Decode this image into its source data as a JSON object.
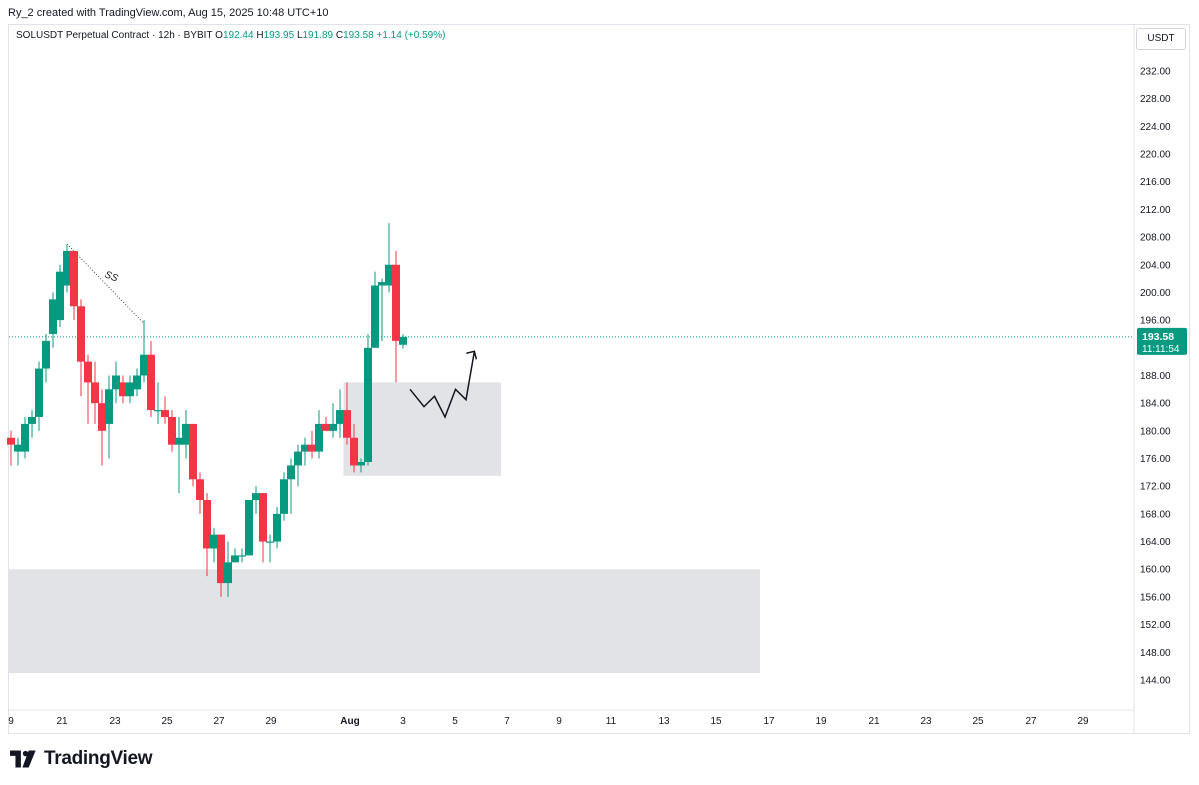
{
  "header": {
    "credit": "Ry_2 created with TradingView.com, Aug 15, 2025 10:48 UTC+10"
  },
  "legend": {
    "symbol": "SOLUSDT Perpetual Contract · 12h · BYBIT",
    "o_label": "O",
    "o_value": "192.44",
    "h_label": "H",
    "h_value": "193.95",
    "l_label": "L",
    "l_value": "191.89",
    "c_label": "C",
    "c_value": "193.58",
    "change": "+1.14 (+0.59%)"
  },
  "price_axis": {
    "currency": "USDT",
    "ticks": [
      "232.00",
      "228.00",
      "224.00",
      "220.00",
      "216.00",
      "212.00",
      "208.00",
      "204.00",
      "200.00",
      "196.00",
      "188.00",
      "184.00",
      "180.00",
      "176.00",
      "172.00",
      "168.00",
      "164.00",
      "160.00",
      "156.00",
      "152.00",
      "148.00",
      "144.00"
    ],
    "current_price": "193.58",
    "countdown": "11:11:54"
  },
  "time_axis": {
    "ticks": [
      "9",
      "21",
      "23",
      "25",
      "27",
      "29",
      "Aug",
      "3",
      "5",
      "7",
      "9",
      "11",
      "13",
      "15",
      "17",
      "19",
      "21",
      "23",
      "25",
      "27",
      "29"
    ]
  },
  "annotations": {
    "trendline_label": "SS"
  },
  "brand": {
    "name": "TradingView"
  },
  "colors": {
    "up": "#089981",
    "down": "#f23645",
    "zone": "#e1e3e6",
    "price_line": "#089981"
  },
  "chart_data": {
    "type": "candlestick",
    "interval": "12h",
    "ylim": [
      143,
      234
    ],
    "x_range": [
      0,
      107
    ],
    "candles": [
      {
        "t": 0,
        "o": 179,
        "h": 180,
        "l": 175,
        "c": 178
      },
      {
        "t": 1,
        "o": 177,
        "h": 179,
        "l": 175,
        "c": 178
      },
      {
        "t": 2,
        "o": 177,
        "h": 182,
        "l": 176,
        "c": 181
      },
      {
        "t": 3,
        "o": 181,
        "h": 183,
        "l": 179,
        "c": 182
      },
      {
        "t": 4,
        "o": 182,
        "h": 190,
        "l": 180,
        "c": 189
      },
      {
        "t": 5,
        "o": 189,
        "h": 194,
        "l": 187,
        "c": 193
      },
      {
        "t": 6,
        "o": 194,
        "h": 200,
        "l": 192,
        "c": 199
      },
      {
        "t": 7,
        "o": 196,
        "h": 204,
        "l": 195,
        "c": 203
      },
      {
        "t": 8,
        "o": 201,
        "h": 207,
        "l": 200,
        "c": 206
      },
      {
        "t": 9,
        "o": 206,
        "h": 206,
        "l": 196,
        "c": 198
      },
      {
        "t": 10,
        "o": 198,
        "h": 199,
        "l": 185,
        "c": 190
      },
      {
        "t": 11,
        "o": 190,
        "h": 191,
        "l": 181,
        "c": 187
      },
      {
        "t": 12,
        "o": 187,
        "h": 190,
        "l": 181,
        "c": 184
      },
      {
        "t": 13,
        "o": 184,
        "h": 186,
        "l": 175,
        "c": 180
      },
      {
        "t": 14,
        "o": 181,
        "h": 188,
        "l": 176,
        "c": 186
      },
      {
        "t": 15,
        "o": 186,
        "h": 190,
        "l": 184,
        "c": 188
      },
      {
        "t": 16,
        "o": 187,
        "h": 188,
        "l": 184,
        "c": 185
      },
      {
        "t": 17,
        "o": 185,
        "h": 188,
        "l": 184,
        "c": 187
      },
      {
        "t": 18,
        "o": 186,
        "h": 189,
        "l": 185,
        "c": 188
      },
      {
        "t": 19,
        "o": 188,
        "h": 196,
        "l": 187,
        "c": 191
      },
      {
        "t": 20,
        "o": 191,
        "h": 193,
        "l": 182,
        "c": 183
      },
      {
        "t": 21,
        "o": 183,
        "h": 187,
        "l": 181,
        "c": 183
      },
      {
        "t": 22,
        "o": 183,
        "h": 185,
        "l": 181,
        "c": 182
      },
      {
        "t": 23,
        "o": 182,
        "h": 183,
        "l": 177,
        "c": 178
      },
      {
        "t": 24,
        "o": 178,
        "h": 182,
        "l": 171,
        "c": 179
      },
      {
        "t": 25,
        "o": 178,
        "h": 183,
        "l": 176,
        "c": 181
      },
      {
        "t": 26,
        "o": 181,
        "h": 181,
        "l": 172,
        "c": 173
      },
      {
        "t": 27,
        "o": 173,
        "h": 174,
        "l": 168,
        "c": 170
      },
      {
        "t": 28,
        "o": 170,
        "h": 171,
        "l": 159,
        "c": 163
      },
      {
        "t": 29,
        "o": 163,
        "h": 166,
        "l": 161,
        "c": 165
      },
      {
        "t": 30,
        "o": 165,
        "h": 165,
        "l": 156,
        "c": 158
      },
      {
        "t": 31,
        "o": 158,
        "h": 164,
        "l": 156,
        "c": 161
      },
      {
        "t": 32,
        "o": 161,
        "h": 163,
        "l": 161,
        "c": 162
      },
      {
        "t": 33,
        "o": 162,
        "h": 163,
        "l": 161,
        "c": 162
      },
      {
        "t": 34,
        "o": 162,
        "h": 170,
        "l": 162,
        "c": 170
      },
      {
        "t": 35,
        "o": 170,
        "h": 172,
        "l": 168,
        "c": 171
      },
      {
        "t": 36,
        "o": 171,
        "h": 171,
        "l": 161,
        "c": 164
      },
      {
        "t": 37,
        "o": 164,
        "h": 165,
        "l": 161,
        "c": 164
      },
      {
        "t": 38,
        "o": 164,
        "h": 169,
        "l": 163,
        "c": 168
      },
      {
        "t": 39,
        "o": 168,
        "h": 174,
        "l": 167,
        "c": 173
      },
      {
        "t": 40,
        "o": 173,
        "h": 176,
        "l": 168,
        "c": 175
      },
      {
        "t": 41,
        "o": 175,
        "h": 178,
        "l": 172,
        "c": 177
      },
      {
        "t": 42,
        "o": 177,
        "h": 179,
        "l": 175,
        "c": 178
      },
      {
        "t": 43,
        "o": 178,
        "h": 180,
        "l": 176,
        "c": 177
      },
      {
        "t": 44,
        "o": 177,
        "h": 183,
        "l": 176,
        "c": 181
      },
      {
        "t": 45,
        "o": 181,
        "h": 182,
        "l": 180,
        "c": 180
      },
      {
        "t": 46,
        "o": 180,
        "h": 184,
        "l": 179,
        "c": 181
      },
      {
        "t": 47,
        "o": 181,
        "h": 186,
        "l": 179,
        "c": 183
      },
      {
        "t": 48,
        "o": 183,
        "h": 187,
        "l": 178,
        "c": 179
      },
      {
        "t": 49,
        "o": 179,
        "h": 181,
        "l": 174,
        "c": 175
      },
      {
        "t": 50,
        "o": 175,
        "h": 176,
        "l": 174,
        "c": 175.5
      },
      {
        "t": 51,
        "o": 175.5,
        "h": 194,
        "l": 175,
        "c": 192
      },
      {
        "t": 52,
        "o": 192,
        "h": 203,
        "l": 192,
        "c": 201
      },
      {
        "t": 53,
        "o": 201,
        "h": 202,
        "l": 193,
        "c": 201.5
      },
      {
        "t": 54,
        "o": 201,
        "h": 210,
        "l": 200,
        "c": 204
      },
      {
        "t": 55,
        "o": 204,
        "h": 206,
        "l": 187,
        "c": 193
      },
      {
        "t": 56,
        "o": 192.44,
        "h": 193.95,
        "l": 191.89,
        "c": 193.58
      }
    ],
    "current_price": 193.58,
    "zones": [
      {
        "x0": -1,
        "x1": 107,
        "y0": 145,
        "y1": 160
      },
      {
        "x0": 47.5,
        "x1": 70,
        "y0": 173.5,
        "y1": 187
      }
    ],
    "trendline": {
      "x0": 8,
      "y0": 207,
      "x1": 19,
      "y1": 195.5
    },
    "projection_path": [
      [
        57,
        186
      ],
      [
        59,
        183.5
      ],
      [
        60.5,
        185
      ],
      [
        62,
        182
      ],
      [
        63.5,
        186
      ],
      [
        65,
        184.5
      ],
      [
        66.2,
        191.5
      ]
    ]
  }
}
